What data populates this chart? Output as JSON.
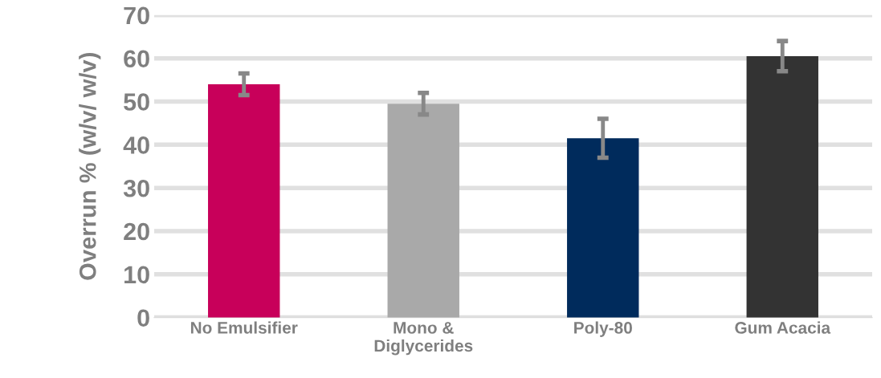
{
  "chart_data": {
    "type": "bar",
    "ylabel": "Overrun % (w/v/ w/v)",
    "categories": [
      "No Emulsifier",
      "Mono &\nDiglycerides",
      "Poly-80",
      "Gum Acacia"
    ],
    "values": [
      54,
      49.5,
      41.5,
      60.5
    ],
    "errors": [
      2.5,
      2.5,
      4.5,
      3.5
    ],
    "colors": [
      "#c8005a",
      "#a9a9a9",
      "#002b5c",
      "#333333"
    ],
    "ylim": [
      0,
      70
    ],
    "yticks": [
      0,
      10,
      20,
      30,
      40,
      50,
      60,
      70
    ],
    "grid": "y"
  }
}
